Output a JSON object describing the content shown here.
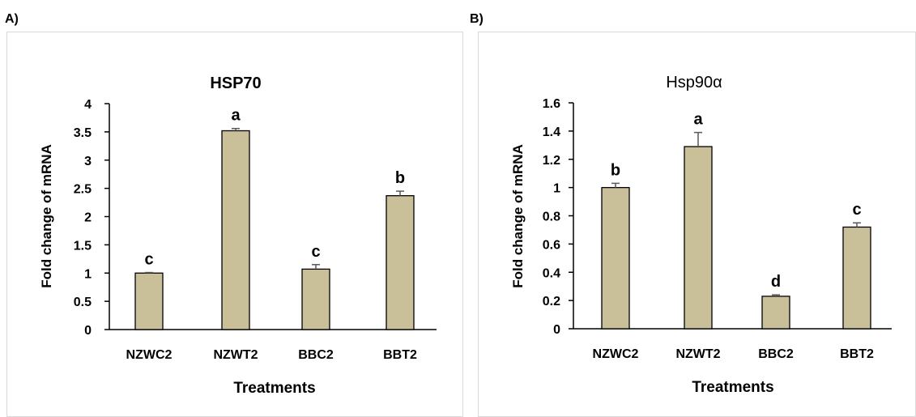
{
  "panels": [
    {
      "label": "A)"
    },
    {
      "label": "B)"
    }
  ],
  "style": {
    "bar_fill": "#c9bf99",
    "bar_stroke": "#000000",
    "error_color": "#595959",
    "border_color": "#d9d9d9"
  },
  "chart_data": [
    {
      "type": "bar",
      "title": "HSP70",
      "title_bold": true,
      "xlabel": "Treatments",
      "ylabel": "Fold change of mRNA",
      "categories": [
        "NZWC2",
        "NZWT2",
        "BBC2",
        "BBT2"
      ],
      "values": [
        1.0,
        3.52,
        1.07,
        2.37
      ],
      "errors": [
        0.01,
        0.04,
        0.08,
        0.08
      ],
      "significance": [
        "c",
        "a",
        "c",
        "b"
      ],
      "ylim": [
        0,
        4
      ],
      "yticks": [
        "0",
        "0.5",
        "1",
        "1.5",
        "2",
        "2.5",
        "3",
        "3.5",
        "4"
      ],
      "ytick_values": [
        0,
        0.5,
        1,
        1.5,
        2,
        2.5,
        3,
        3.5,
        4
      ],
      "grid": false,
      "legend": "none"
    },
    {
      "type": "bar",
      "title": "Hsp90α",
      "title_bold": false,
      "xlabel": "Treatments",
      "ylabel": "Fold change of mRNA",
      "categories": [
        "NZWC2",
        "NZWT2",
        "BBC2",
        "BBT2"
      ],
      "values": [
        1.0,
        1.29,
        0.23,
        0.72
      ],
      "errors": [
        0.03,
        0.1,
        0.01,
        0.03
      ],
      "significance": [
        "b",
        "a",
        "d",
        "c"
      ],
      "ylim": [
        0,
        1.6
      ],
      "yticks": [
        "0",
        "0.2",
        "0.4",
        "0.6",
        "0.8",
        "1",
        "1.2",
        "1.4",
        "1.6"
      ],
      "ytick_values": [
        0,
        0.2,
        0.4,
        0.6,
        0.8,
        1,
        1.2,
        1.4,
        1.6
      ],
      "grid": false,
      "legend": "none"
    }
  ]
}
